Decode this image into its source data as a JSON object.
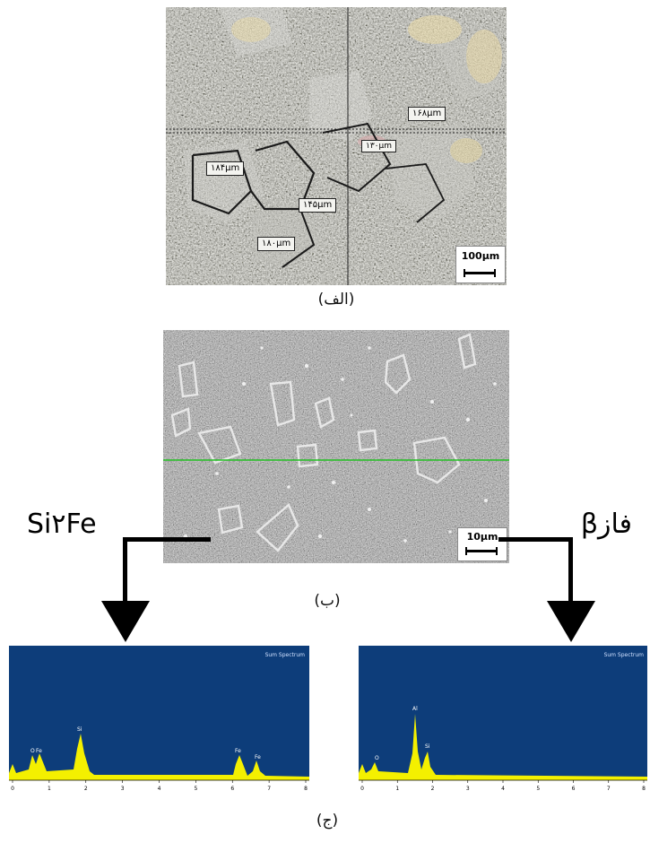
{
  "panel_a": {
    "caption": "(الف)",
    "scale_label": "100µm",
    "grain_labels": [
      "۱۶۸µm",
      "۱۸۴µm",
      "۱۴۵µm",
      "۱۸۰µm",
      "۱۳۰µm"
    ]
  },
  "panel_b": {
    "caption": "(ب)",
    "scale_label": "10µm",
    "phase_left": "Si۲Fe",
    "phase_right": "فازβ"
  },
  "panel_c": {
    "caption": "(ج)",
    "spectrum_title": "Sum Spectrum",
    "x_ticks": [
      "0",
      "1",
      "2",
      "3",
      "4",
      "5",
      "6",
      "7",
      "8"
    ],
    "left_peaks": [
      "O",
      "Fe",
      "Si",
      "Fe",
      "Fe"
    ],
    "right_peaks": [
      "O",
      "Al",
      "Si"
    ]
  },
  "colors": {
    "spectrum_bg": "#0d3d7a",
    "spectrum_fill": "#f4f000",
    "scan_line": "#22c022"
  },
  "chart_data": [
    {
      "type": "area",
      "title": "Sum Spectrum",
      "x": [
        0.1,
        0.5,
        0.7,
        1.8,
        6.4,
        7.0
      ],
      "values": [
        0.15,
        0.18,
        0.2,
        0.45,
        0.2,
        0.15
      ],
      "peak_labels": [
        "",
        "O",
        "Fe",
        "Si",
        "Fe",
        "Fe"
      ],
      "xlim": [
        0,
        8
      ]
    },
    {
      "type": "area",
      "title": "Sum Spectrum",
      "x": [
        0.1,
        0.5,
        1.5,
        1.8
      ],
      "values": [
        0.1,
        0.15,
        0.7,
        0.3
      ],
      "peak_labels": [
        "",
        "O",
        "Al",
        "Si"
      ],
      "xlim": [
        0,
        8
      ]
    }
  ]
}
